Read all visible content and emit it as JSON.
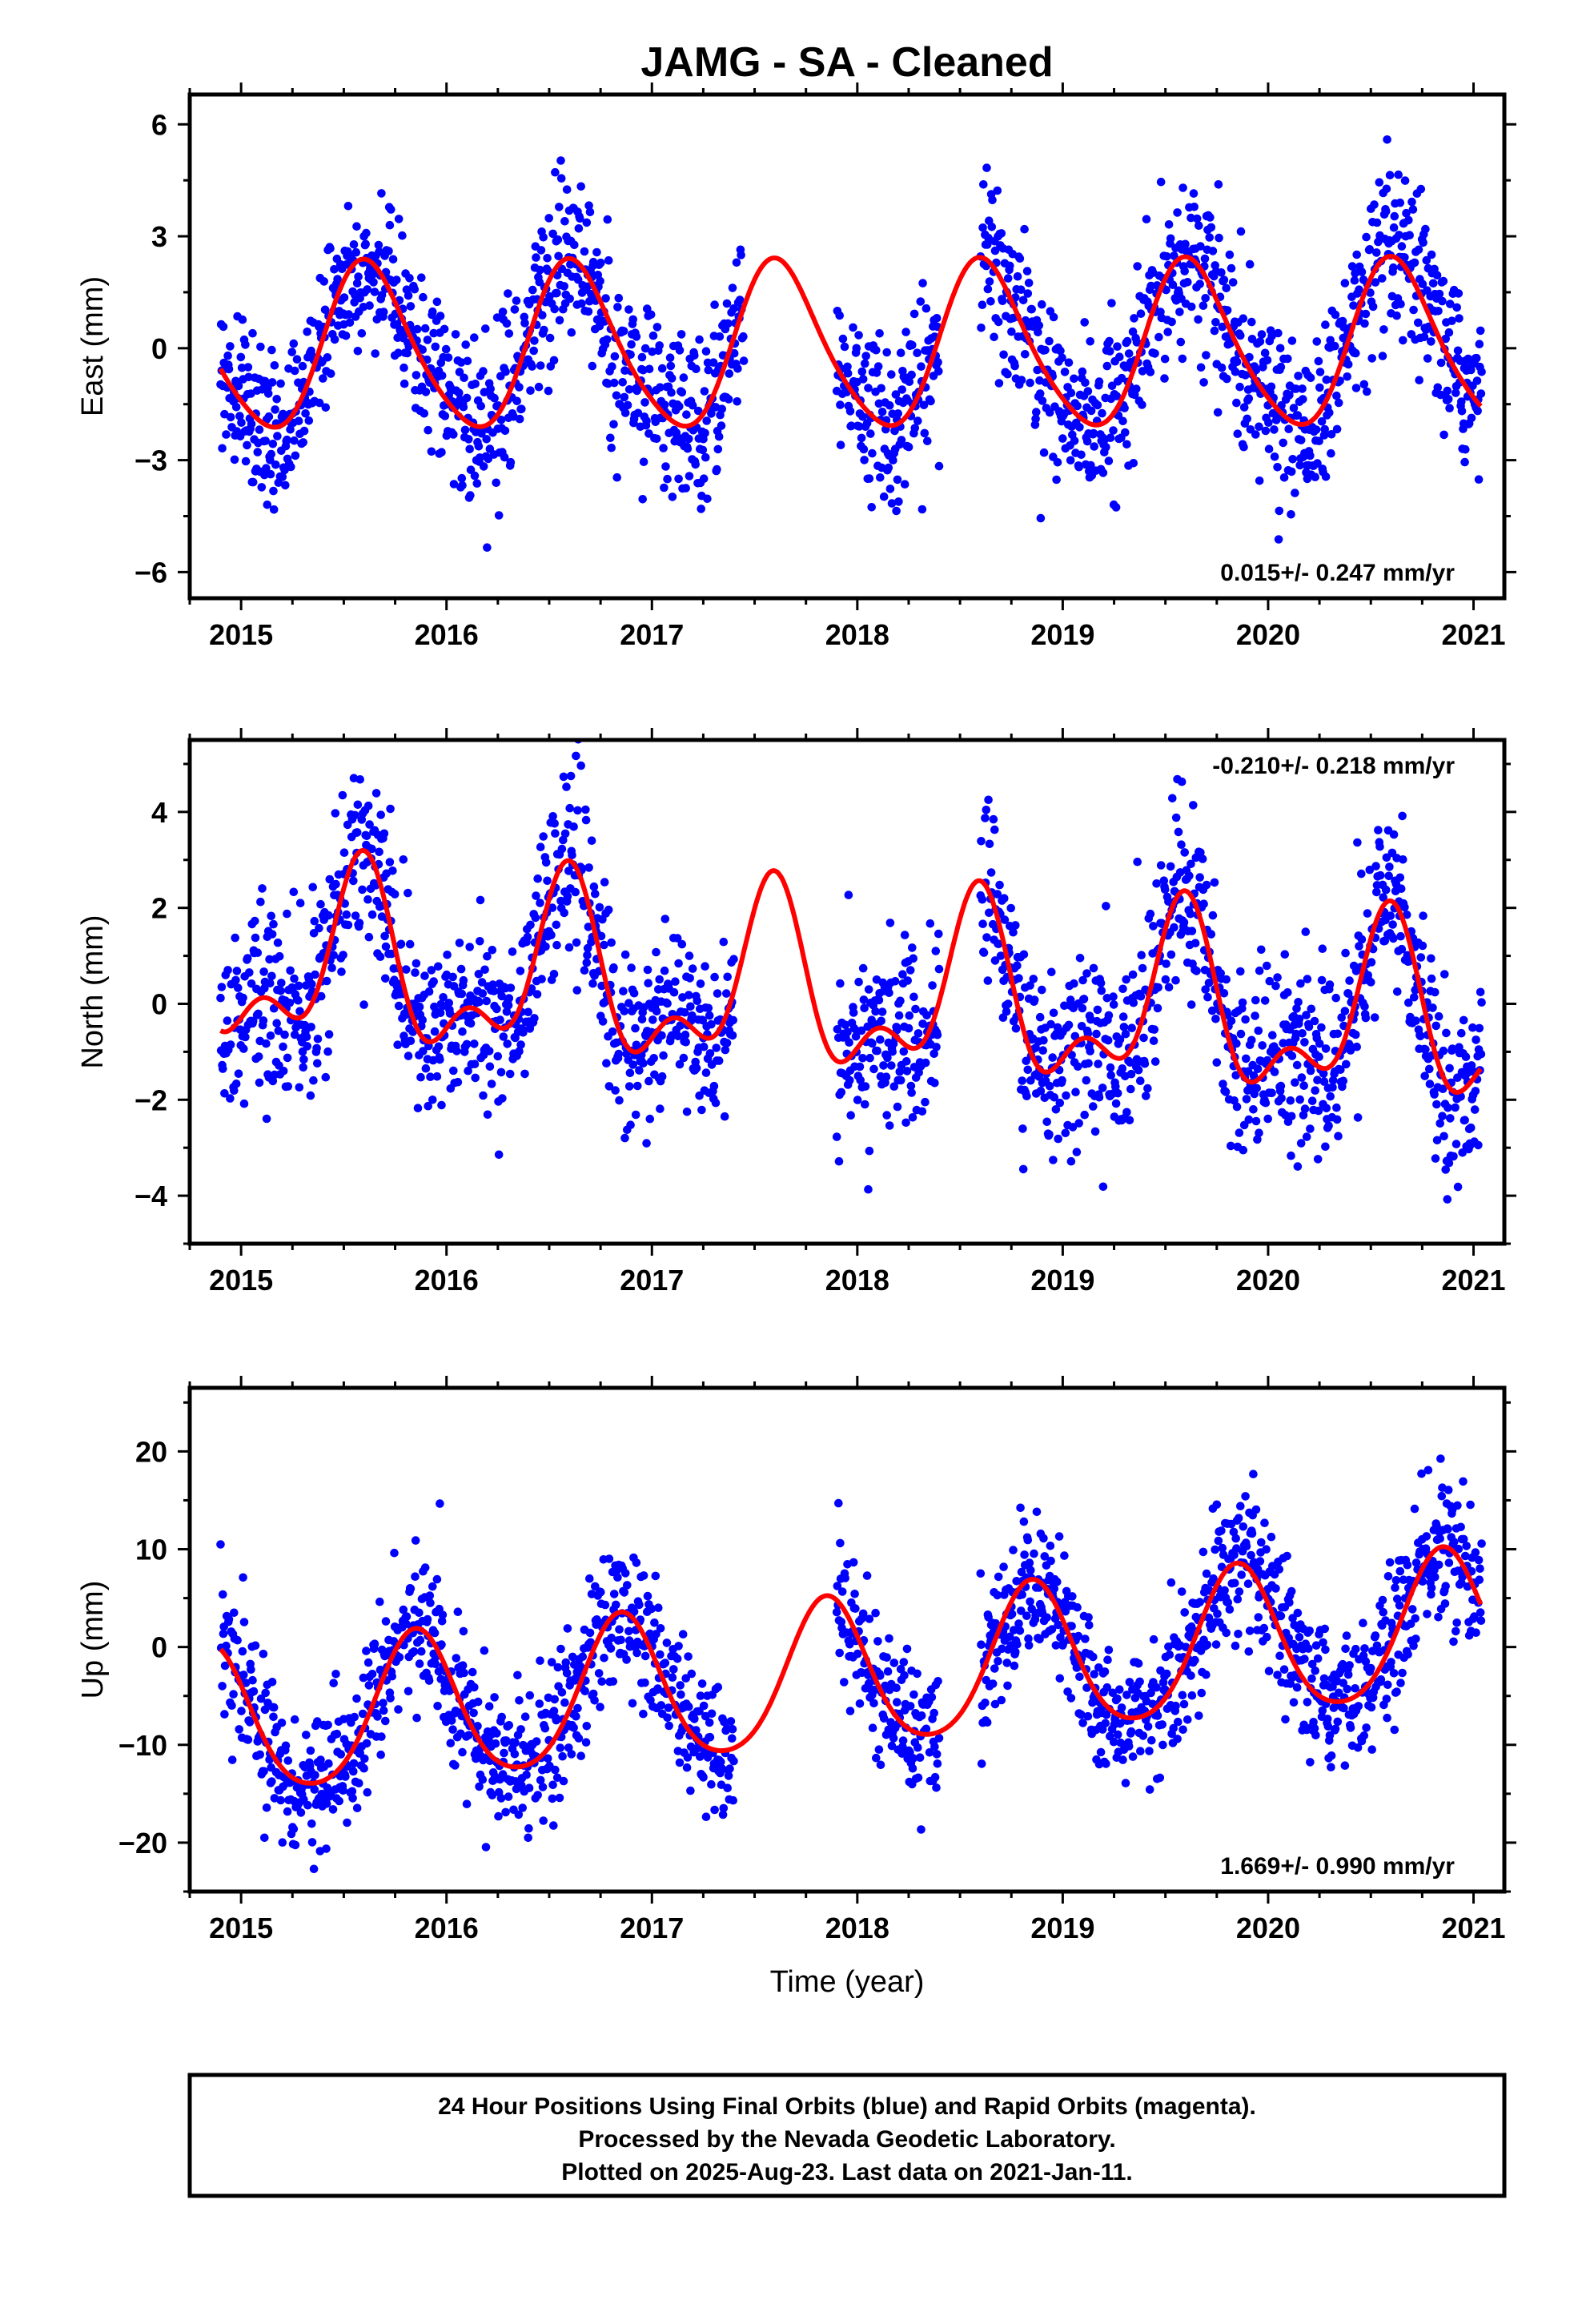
{
  "title": "JAMG  - SA - Cleaned",
  "footer": {
    "lines": [
      "24 Hour Positions Using Final Orbits (blue) and Rapid Orbits (magenta).",
      "Processed by the Nevada Geodetic Laboratory.",
      "Plotted on 2025-Aug-23. Last data on 2021-Jan-11."
    ]
  },
  "colors": {
    "points": "#0000ff",
    "model": "#ff0000",
    "frame": "#000000"
  },
  "chart_data": [
    {
      "type": "scatter",
      "ylabel": "East (mm)",
      "xlabel": "",
      "xlim": [
        2014.75,
        2021.15
      ],
      "ylim": [
        -6.7,
        6.8
      ],
      "xticks": [
        2015,
        2016,
        2017,
        2018,
        2019,
        2020,
        2021
      ],
      "yticks": [
        -6,
        -3,
        0,
        3,
        6
      ],
      "grid": false,
      "rate_label": "0.015+/- 0.247 mm/yr",
      "rate_position": "bottom-right",
      "data_spans": [
        [
          2014.9,
          2016.9
        ],
        [
          2016.9,
          2017.45
        ],
        [
          2017.9,
          2018.4
        ],
        [
          2018.6,
          2021.04
        ]
      ],
      "model": {
        "offset": 0.0,
        "trend": 0.015,
        "annual_amp": 2.2,
        "annual_peak": 2015.62,
        "semi_amp": 0.3,
        "semi_peak": 2015.55
      },
      "scatter_sd": 1.1,
      "series": [
        {
          "name": "Final Orbits",
          "role": "points"
        },
        {
          "name": "Model",
          "role": "line"
        }
      ]
    },
    {
      "type": "scatter",
      "ylabel": "North (mm)",
      "xlabel": "",
      "xlim": [
        2014.75,
        2021.15
      ],
      "ylim": [
        -5.0,
        5.5
      ],
      "xticks": [
        2015,
        2016,
        2017,
        2018,
        2019,
        2020,
        2021
      ],
      "yticks": [
        -4,
        -2,
        0,
        2,
        4
      ],
      "grid": false,
      "rate_label": "-0.210+/- 0.218 mm/yr",
      "rate_position": "top-right",
      "data_spans": [
        [
          2014.9,
          2016.9
        ],
        [
          2016.9,
          2017.4
        ],
        [
          2017.9,
          2018.4
        ],
        [
          2018.6,
          2021.04
        ]
      ],
      "model": {
        "offset": 0.2,
        "trend": -0.21,
        "annual_amp": 1.6,
        "annual_peak": 2015.58,
        "semi_amp": 0.9,
        "semi_peak": 2015.6
      },
      "scatter_sd": 0.95,
      "series": [
        {
          "name": "Final Orbits",
          "role": "points"
        },
        {
          "name": "Model",
          "role": "line"
        }
      ]
    },
    {
      "type": "scatter",
      "ylabel": "Up (mm)",
      "xlabel": "Time (year)",
      "xlim": [
        2014.75,
        2021.15
      ],
      "ylim": [
        -25,
        26.5
      ],
      "xticks": [
        2015,
        2016,
        2017,
        2018,
        2019,
        2020,
        2021
      ],
      "yticks": [
        -20,
        -10,
        0,
        10,
        20
      ],
      "grid": false,
      "rate_label": "1.669+/- 0.990 mm/yr",
      "rate_position": "bottom-right",
      "data_spans": [
        [
          2014.9,
          2016.9
        ],
        [
          2016.9,
          2017.4
        ],
        [
          2017.9,
          2018.4
        ],
        [
          2018.6,
          2021.04
        ]
      ],
      "model": {
        "offset": -3.0,
        "trend": 1.669,
        "annual_amp": 7.5,
        "annual_peak": 2015.85,
        "semi_amp": 1.0,
        "semi_peak": 2015.85
      },
      "scatter_sd": 3.6,
      "series": [
        {
          "name": "Final Orbits",
          "role": "points"
        },
        {
          "name": "Model",
          "role": "line"
        }
      ]
    }
  ]
}
